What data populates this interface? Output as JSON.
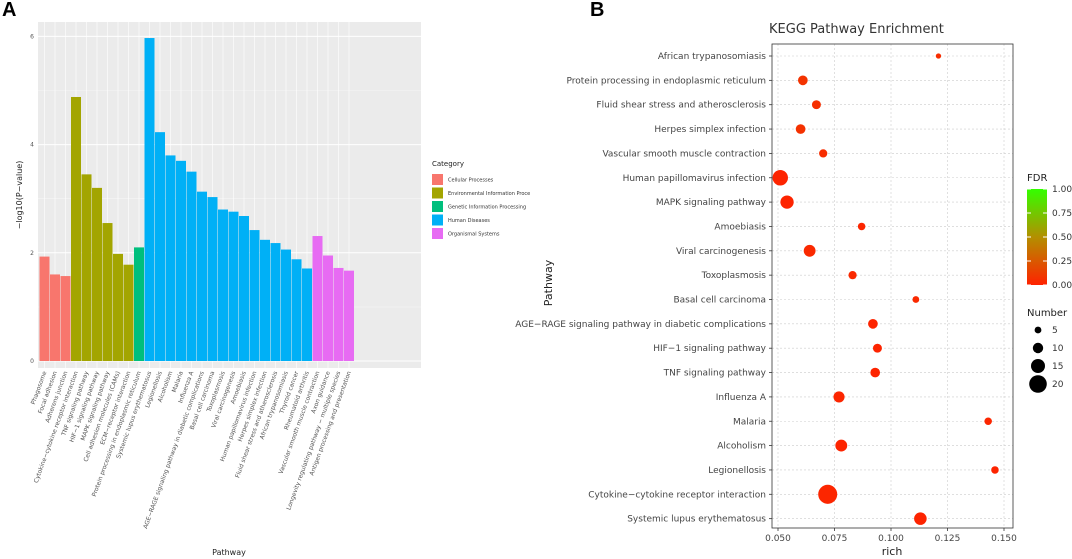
{
  "panels": {
    "a_label": "A",
    "b_label": "B"
  },
  "chart_data": [
    {
      "type": "bar",
      "title": "",
      "xlabel": "Pathway",
      "ylabel": "−log10(P−value)",
      "ylim": [
        0,
        6.2
      ],
      "yticks": [
        0,
        2,
        4,
        6
      ],
      "legend_title": "Category",
      "categories_legend": [
        {
          "name": "Cellular Processes",
          "color": "#F8766D"
        },
        {
          "name": "Environmental Information Proce",
          "color": "#A3A500"
        },
        {
          "name": "Genetic Information Processing",
          "color": "#00BF7D"
        },
        {
          "name": "Human Diseases",
          "color": "#00B0F6"
        },
        {
          "name": "Organismal Systems",
          "color": "#E76BF3"
        }
      ],
      "categories": [
        "Phagosome",
        "Focal adhesion",
        "Adherens junction",
        "Cytokine−cytokine receptor interaction",
        "TNF signaling pathway",
        "HIF−1 signaling pathway",
        "MAPK signaling pathway",
        "Cell adhesion molecules (CAMs)",
        "ECM−receptor interaction",
        "Protein processing in endoplasmic reticulum",
        "Systemic lupus erythematosus",
        "Legionellosis",
        "Alcoholism",
        "Malaria",
        "Influenza A",
        "AGE−RAGE signaling pathway in diabetic complications",
        "Basal cell carcinoma",
        "Toxoplasmosis",
        "Viral carcinogenesis",
        "Amoebiasis",
        "Human papillomavirus infection",
        "Herpes simplex infection",
        "Fluid shear stress and atherosclerosis",
        "African trypanosomiasis",
        "Thyroid cancer",
        "Rheumatoid arthritis",
        "Vascular smooth muscle contraction",
        "Axon guidance",
        "Longevity regulating pathway − multiple species",
        "Antigen processing and presentation"
      ],
      "values": [
        1.93,
        1.6,
        1.57,
        4.88,
        3.45,
        3.2,
        2.55,
        1.98,
        1.78,
        2.1,
        5.97,
        4.23,
        3.8,
        3.7,
        3.5,
        3.13,
        3.03,
        2.8,
        2.76,
        2.68,
        2.42,
        2.24,
        2.18,
        2.06,
        1.88,
        1.71,
        2.31,
        1.95,
        1.72,
        1.67
      ],
      "category_index": [
        0,
        0,
        0,
        1,
        1,
        1,
        1,
        1,
        1,
        2,
        3,
        3,
        3,
        3,
        3,
        3,
        3,
        3,
        3,
        3,
        3,
        3,
        3,
        3,
        3,
        3,
        4,
        4,
        4,
        4
      ]
    },
    {
      "type": "scatter",
      "title": "KEGG Pathway Enrichment",
      "xlabel": "rich",
      "ylabel": "Pathway",
      "xlim": [
        0.045,
        0.15
      ],
      "xticks": [
        "0.050",
        "0.075",
        "0.100",
        "0.125",
        "0.150"
      ],
      "xtick_values": [
        0.05,
        0.075,
        0.1,
        0.125,
        0.15
      ],
      "pathways": [
        "African trypanosomiasis",
        "Protein processing in endoplasmic reticulum",
        "Fluid shear stress and atherosclerosis",
        "Herpes simplex infection",
        "Vascular smooth muscle contraction",
        "Human papillomavirus infection",
        "MAPK signaling pathway",
        "Amoebiasis",
        "Viral carcinogenesis",
        "Toxoplasmosis",
        "Basal cell carcinoma",
        "AGE−RAGE signaling pathway in diabetic complications",
        "HIF−1 signaling pathway",
        "TNF signaling pathway",
        "Influenza A",
        "Malaria",
        "Alcoholism",
        "Legionellosis",
        "Cytokine−cytokine receptor interaction",
        "Systemic lupus erythematosus"
      ],
      "rich": [
        0.121,
        0.061,
        0.067,
        0.06,
        0.07,
        0.051,
        0.054,
        0.087,
        0.064,
        0.083,
        0.111,
        0.092,
        0.094,
        0.093,
        0.077,
        0.143,
        0.078,
        0.146,
        0.072,
        0.113
      ],
      "number": [
        3,
        9,
        8,
        9,
        7,
        17,
        14,
        6,
        12,
        7,
        5,
        9,
        8,
        9,
        11,
        6,
        12,
        6,
        22,
        13
      ],
      "fdr": [
        0.05,
        0.08,
        0.06,
        0.07,
        0.05,
        0.01,
        0.01,
        0.02,
        0.03,
        0.03,
        0.03,
        0.01,
        0.01,
        0.01,
        0.02,
        0.02,
        0.01,
        0.01,
        0.02,
        0.01
      ],
      "fdr_legend": {
        "title": "FDR",
        "ticks": [
          "1.00",
          "0.75",
          "0.50",
          "0.25",
          "0.00"
        ]
      },
      "size_legend": {
        "title": "Number",
        "values": [
          5,
          10,
          15,
          20
        ]
      }
    }
  ]
}
